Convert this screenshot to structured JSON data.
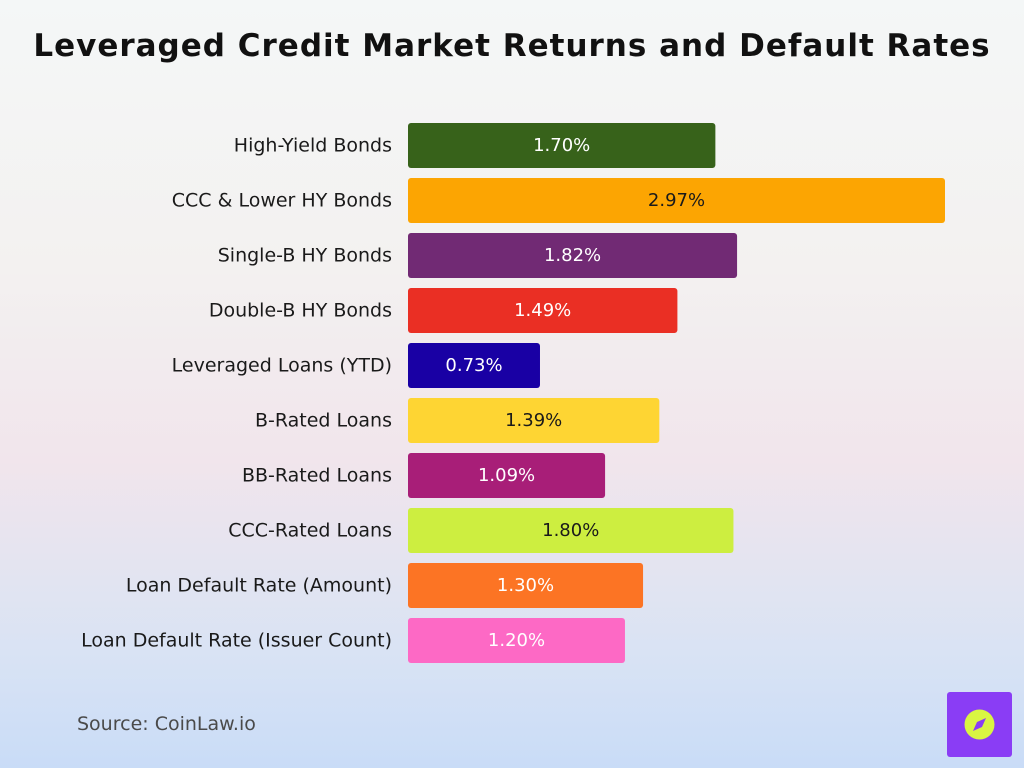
{
  "title": "Leveraged Credit Market Returns and Default Rates",
  "source": "Source: CoinLaw.io",
  "logo": {
    "icon": "compass-icon",
    "color": "#8a3df5",
    "inner_color": "#d9f542"
  },
  "chart_data": {
    "type": "bar",
    "orientation": "horizontal",
    "title": "Leveraged Credit Market Returns and Default Rates",
    "xlabel": "",
    "ylabel": "",
    "xlim": [
      0,
      2.97
    ],
    "grid": false,
    "categories": [
      "High-Yield Bonds",
      "CCC & Lower HY Bonds",
      "Single-B HY Bonds",
      "Double-B HY Bonds",
      "Leveraged Loans (YTD)",
      "B-Rated Loans",
      "BB-Rated Loans",
      "CCC-Rated Loans",
      "Loan Default Rate (Amount)",
      "Loan Default Rate (Issuer Count)"
    ],
    "values": [
      1.7,
      2.97,
      1.82,
      1.49,
      0.73,
      1.39,
      1.09,
      1.8,
      1.3,
      1.2
    ],
    "value_labels": [
      "1.70%",
      "2.97%",
      "1.82%",
      "1.49%",
      "0.73%",
      "1.39%",
      "1.09%",
      "1.80%",
      "1.30%",
      "1.20%"
    ],
    "colors": [
      "#37621a",
      "#fca502",
      "#712a74",
      "#ea2f24",
      "#1900a4",
      "#fed533",
      "#a81e78",
      "#cdee40",
      "#fc7424",
      "#fd69c5"
    ],
    "label_colors": [
      "#ffffff",
      "#1a1a1a",
      "#ffffff",
      "#ffffff",
      "#ffffff",
      "#1a1a1a",
      "#ffffff",
      "#1a1a1a",
      "#ffffff",
      "#ffffff"
    ]
  }
}
